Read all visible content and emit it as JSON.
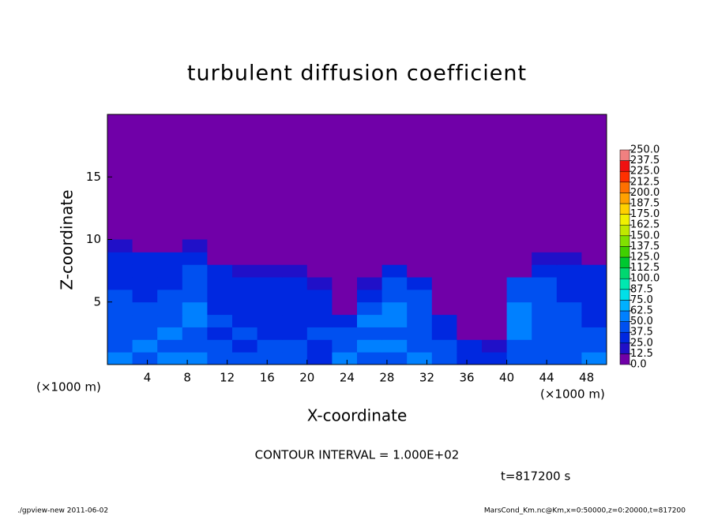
{
  "chart_data": {
    "type": "heatmap",
    "title": "turbulent diffusion coefficient",
    "xlabel": "X-coordinate",
    "ylabel": "Z-coordinate",
    "xunit": "(×1000 m)",
    "yunit": "(×1000 m)",
    "xlim": [
      0,
      50
    ],
    "ylim": [
      0,
      20
    ],
    "xticks": [
      4,
      8,
      12,
      16,
      20,
      24,
      28,
      32,
      36,
      40,
      44,
      48
    ],
    "yticks": [
      5,
      10,
      15
    ],
    "field": {
      "x": [
        1.25,
        3.75,
        6.25,
        8.75,
        11.25,
        13.75,
        16.25,
        18.75,
        21.25,
        23.75,
        26.25,
        28.75,
        31.25,
        33.75,
        36.25,
        38.75,
        41.25,
        43.75,
        46.25,
        48.75
      ],
      "z": [
        0.5,
        1.5,
        2.5,
        3.5,
        4.5,
        5.5,
        6.5,
        7.5,
        8.5,
        9.5
      ],
      "values": [
        [
          55,
          48,
          60,
          52,
          45,
          40,
          38,
          42,
          35,
          50,
          45,
          40,
          55,
          48,
          30,
          28,
          42,
          45,
          40,
          60
        ],
        [
          45,
          52,
          40,
          48,
          38,
          35,
          42,
          40,
          30,
          45,
          55,
          50,
          45,
          40,
          25,
          22,
          48,
          40,
          45,
          38
        ],
        [
          40,
          45,
          50,
          42,
          35,
          38,
          35,
          32,
          38,
          40,
          42,
          48,
          40,
          35,
          8,
          10,
          50,
          42,
          38,
          40
        ],
        [
          48,
          38,
          42,
          55,
          40,
          32,
          30,
          35,
          30,
          35,
          50,
          52,
          45,
          30,
          5,
          5,
          55,
          45,
          40,
          35
        ],
        [
          42,
          40,
          38,
          50,
          35,
          30,
          32,
          28,
          25,
          12,
          45,
          55,
          42,
          8,
          5,
          5,
          50,
          42,
          38,
          32
        ],
        [
          38,
          35,
          40,
          45,
          32,
          28,
          30,
          30,
          28,
          8,
          35,
          48,
          40,
          5,
          5,
          5,
          45,
          40,
          35,
          30
        ],
        [
          35,
          32,
          30,
          40,
          30,
          25,
          28,
          25,
          15,
          5,
          18,
          40,
          35,
          5,
          5,
          5,
          38,
          38,
          32,
          30
        ],
        [
          32,
          30,
          28,
          38,
          28,
          22,
          20,
          15,
          5,
          5,
          5,
          30,
          12,
          5,
          5,
          5,
          5,
          35,
          30,
          28
        ],
        [
          30,
          28,
          25,
          35,
          12,
          5,
          5,
          5,
          5,
          5,
          5,
          5,
          5,
          5,
          5,
          5,
          5,
          15,
          15,
          12
        ],
        [
          15,
          5,
          5,
          20,
          5,
          5,
          5,
          5,
          5,
          5,
          5,
          5,
          5,
          5,
          5,
          5,
          5,
          5,
          5,
          5
        ]
      ]
    },
    "levels": [
      {
        "value": 0,
        "label": "0.0"
      },
      12.5,
      {
        "value": 25,
        "label": "25.0"
      },
      37.5,
      {
        "value": 50,
        "label": "50.0"
      },
      62.5,
      {
        "value": 75,
        "label": "75.0"
      },
      87.5,
      {
        "value": 100,
        "label": "100.0"
      },
      112.5,
      {
        "value": 125,
        "label": "125.0"
      },
      137.5,
      {
        "value": 150,
        "label": "150.0"
      },
      162.5,
      {
        "value": 175,
        "label": "175.0"
      },
      187.5,
      {
        "value": 200,
        "label": "200.0"
      },
      212.5,
      {
        "value": 225,
        "label": "225.0"
      },
      237.5,
      {
        "value": 250,
        "label": "250.0"
      }
    ],
    "colors": [
      "#7000a8",
      "#2010c8",
      "#0028e0",
      "#0050f0",
      "#0080ff",
      "#00b0ff",
      "#00e0e8",
      "#00e8b0",
      "#00d870",
      "#00c830",
      "#40d000",
      "#80e000",
      "#c0e800",
      "#f0f000",
      "#ffd000",
      "#ffa000",
      "#ff7000",
      "#ff3000",
      "#f01010",
      "#f08080"
    ],
    "annotations": [
      "CONTOUR INTERVAL = 1.000E+02",
      "t=817200 s",
      "./gpview-new  2011-06-02",
      "MarsCond_Km.nc@Km,x=0:50000,z=0:20000,t=817200"
    ]
  }
}
